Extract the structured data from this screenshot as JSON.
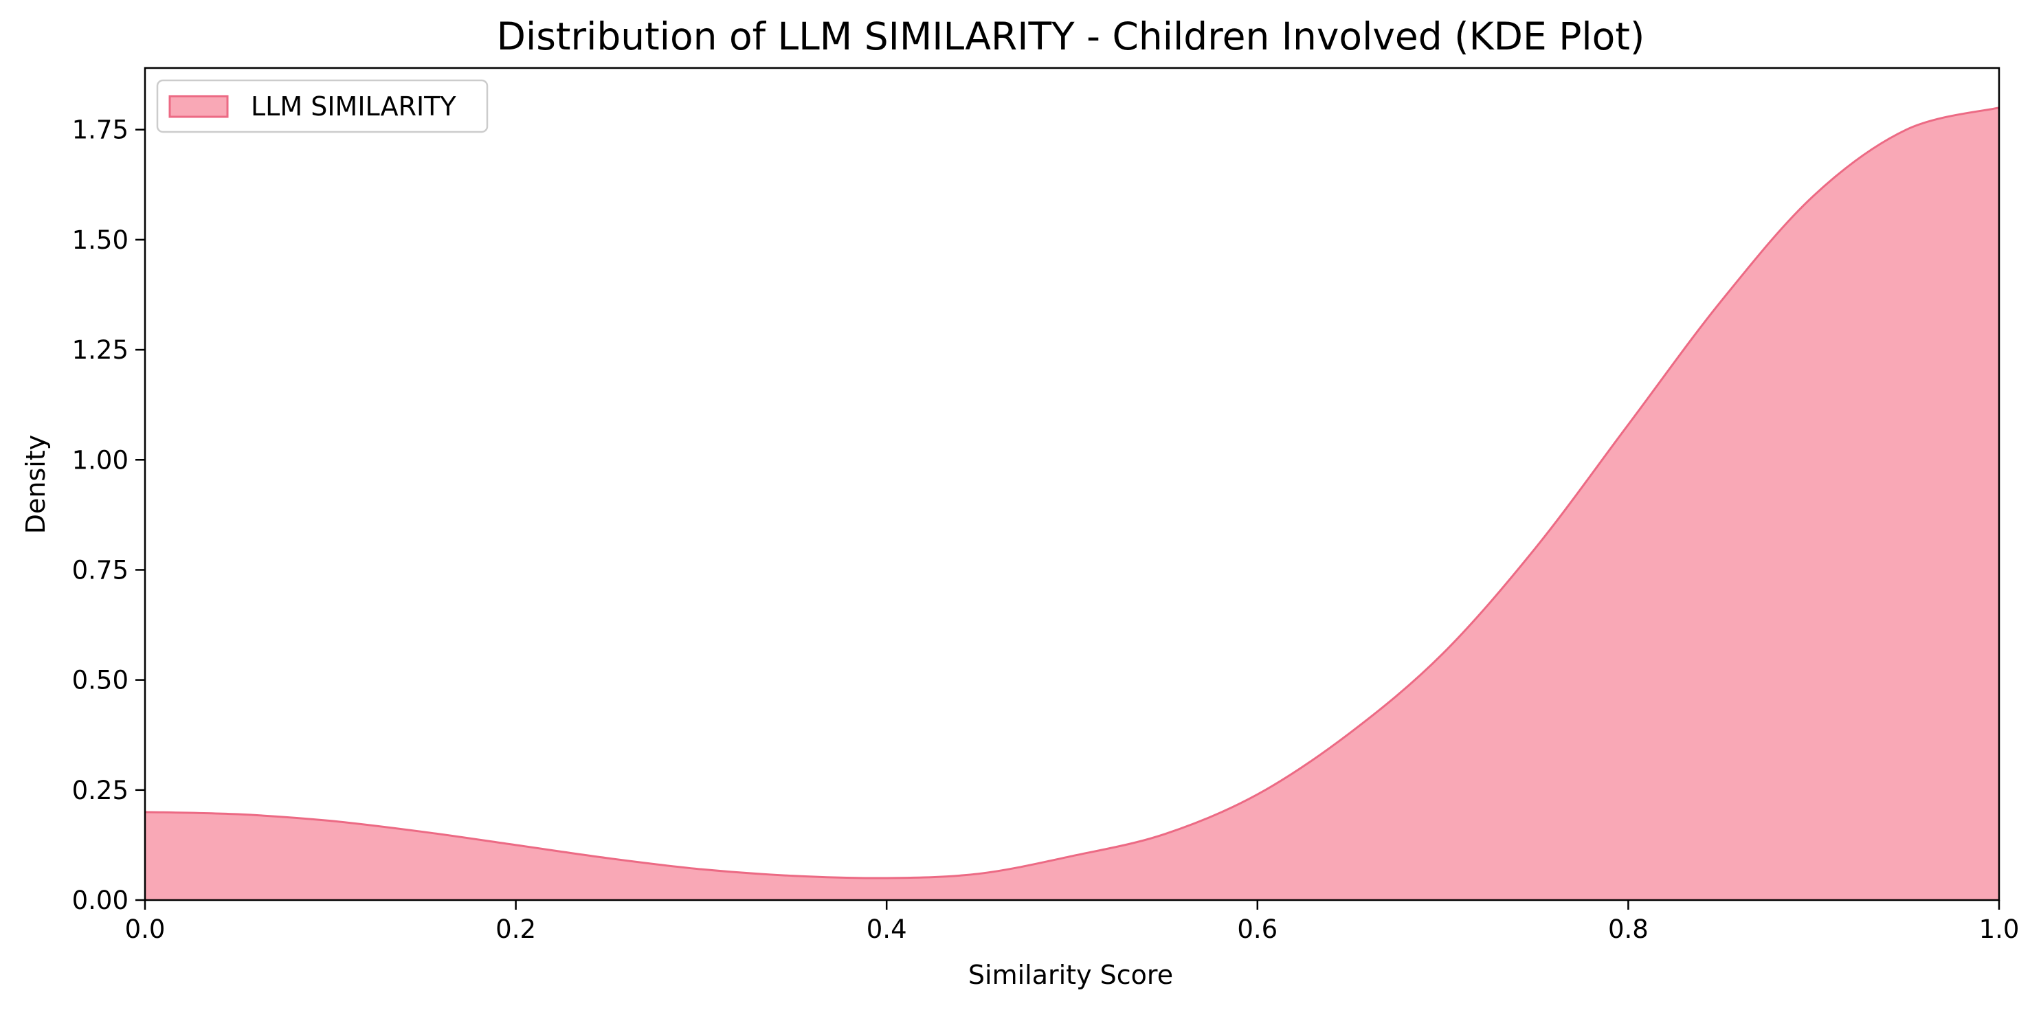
{
  "chart_data": {
    "type": "area",
    "title": "Distribution of LLM SIMILARITY - Children Involved (KDE Plot)",
    "xlabel": "Similarity Score",
    "ylabel": "Density",
    "xlim": [
      0.0,
      1.0
    ],
    "ylim": [
      0.0,
      1.89
    ],
    "xticks": [
      0.0,
      0.2,
      0.4,
      0.6,
      0.8,
      1.0
    ],
    "xtick_labels": [
      "0.0",
      "0.2",
      "0.4",
      "0.6",
      "0.8",
      "1.0"
    ],
    "yticks": [
      0.0,
      0.25,
      0.5,
      0.75,
      1.0,
      1.25,
      1.5,
      1.75
    ],
    "ytick_labels": [
      "0.00",
      "0.25",
      "0.50",
      "0.75",
      "1.00",
      "1.25",
      "1.50",
      "1.75"
    ],
    "legend": "upper-left",
    "grid": false,
    "series": [
      {
        "name": "LLM SIMILARITY",
        "fill_color": "#f9a8b6",
        "line_color": "#ec6a84",
        "x": [
          0.0,
          0.05,
          0.1,
          0.15,
          0.2,
          0.25,
          0.3,
          0.35,
          0.4,
          0.45,
          0.5,
          0.55,
          0.6,
          0.65,
          0.7,
          0.75,
          0.8,
          0.85,
          0.9,
          0.95,
          1.0
        ],
        "y": [
          0.2,
          0.195,
          0.18,
          0.155,
          0.125,
          0.095,
          0.07,
          0.055,
          0.05,
          0.06,
          0.1,
          0.15,
          0.24,
          0.38,
          0.56,
          0.8,
          1.08,
          1.36,
          1.6,
          1.75,
          1.8
        ]
      }
    ]
  }
}
